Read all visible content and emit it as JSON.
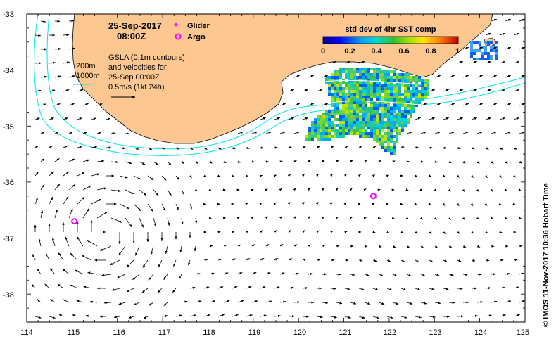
{
  "map": {
    "lon_range": [
      114,
      125
    ],
    "lat_range": [
      -38.5,
      -33
    ],
    "x_ticks": [
      "114",
      "115",
      "116",
      "117",
      "118",
      "119",
      "120",
      "121",
      "122",
      "123",
      "124",
      "125"
    ],
    "y_ticks": [
      "-33",
      "-34",
      "-35",
      "-36",
      "-37",
      "-38"
    ]
  },
  "header": {
    "date": "25-Sep-2017",
    "time": "08:00Z"
  },
  "legend": {
    "glider_label": "Glider",
    "argo_label": "Argo",
    "glider_color": "#ff00ff",
    "argo_color": "#ff00ff"
  },
  "contours": {
    "label_200": "200m",
    "label_1000": "1000m",
    "color": "#00e5ee"
  },
  "gsla_note": {
    "line1": "GSLA (0.1m contours)",
    "line2": "and velocities for",
    "line3": "25-Sep 00:00Z",
    "line4": "0.5m/s (1kt 24h)"
  },
  "colorbar": {
    "title": "std dev of 4hr SST comp",
    "ticks": [
      "0",
      "0.2",
      "0.4",
      "0.6",
      "0.8",
      "1"
    ]
  },
  "credit": "© IMOS 11-Nov-2017 10:36 Hobart Time",
  "land_color": "#fcc791",
  "argo_floats": [
    {
      "lon": 115.05,
      "lat": -36.7
    },
    {
      "lon": 121.65,
      "lat": -36.25
    }
  ]
}
